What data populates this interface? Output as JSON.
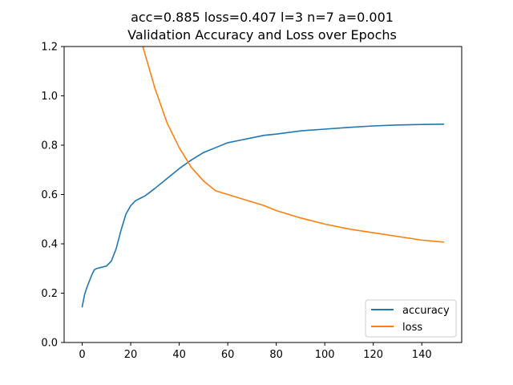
{
  "chart_data": {
    "type": "line",
    "title_line1": "acc=0.885 loss=0.407 l=3 n=7 a=0.001",
    "title_line2": "Validation Accuracy and Loss over Epochs",
    "xlabel": "",
    "ylabel": "",
    "xlim": [
      -7.45,
      156.45
    ],
    "ylim": [
      0.0,
      1.2
    ],
    "x_ticks": [
      0,
      20,
      40,
      60,
      80,
      100,
      120,
      140
    ],
    "y_ticks": [
      0.0,
      0.2,
      0.4,
      0.6,
      0.8,
      1.0,
      1.2
    ],
    "y_tick_labels": [
      "0.0",
      "0.2",
      "0.4",
      "0.6",
      "0.8",
      "1.0",
      "1.2"
    ],
    "grid": false,
    "legend_position": "lower-right",
    "series": [
      {
        "name": "accuracy",
        "color": "#1f77b4",
        "x": [
          0,
          1,
          2,
          3,
          4,
          5,
          6,
          8,
          10,
          12,
          14,
          16,
          18,
          20,
          22,
          24,
          26,
          28,
          30,
          35,
          40,
          45,
          50,
          55,
          60,
          65,
          70,
          75,
          80,
          90,
          100,
          110,
          120,
          130,
          140,
          149
        ],
        "y": [
          0.145,
          0.195,
          0.225,
          0.25,
          0.275,
          0.295,
          0.3,
          0.305,
          0.31,
          0.33,
          0.38,
          0.455,
          0.52,
          0.555,
          0.575,
          0.585,
          0.595,
          0.61,
          0.625,
          0.665,
          0.705,
          0.74,
          0.77,
          0.79,
          0.81,
          0.82,
          0.83,
          0.84,
          0.845,
          0.858,
          0.865,
          0.872,
          0.878,
          0.882,
          0.884,
          0.885
        ]
      },
      {
        "name": "loss",
        "color": "#ff7f0e",
        "x": [
          25,
          30,
          35,
          40,
          45,
          50,
          55,
          60,
          65,
          70,
          75,
          80,
          85,
          90,
          100,
          110,
          120,
          130,
          140,
          149
        ],
        "y": [
          1.2,
          1.03,
          0.89,
          0.79,
          0.71,
          0.655,
          0.615,
          0.6,
          0.585,
          0.57,
          0.555,
          0.535,
          0.52,
          0.505,
          0.48,
          0.46,
          0.445,
          0.43,
          0.415,
          0.407
        ]
      }
    ]
  }
}
